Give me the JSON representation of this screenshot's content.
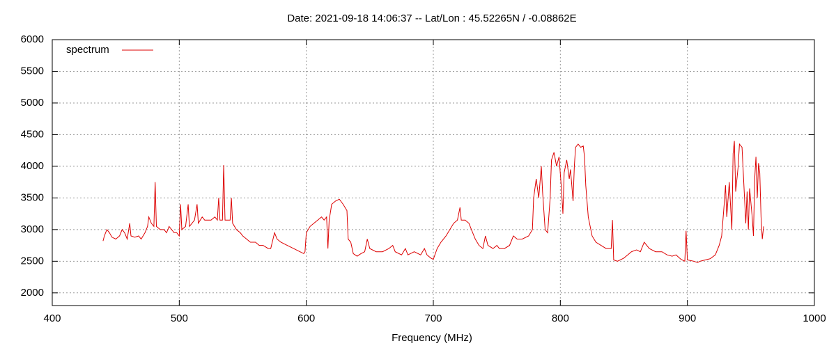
{
  "chart_data": {
    "type": "line",
    "title": "Date: 2021-09-18 14:06:37  --  Lat/Lon : 45.52265N / -0.08862E",
    "x_label": "Frequency (MHz)",
    "x": [
      440,
      441,
      443,
      445,
      447,
      450,
      453,
      455,
      457,
      459,
      461,
      462,
      465,
      468,
      470,
      473,
      475,
      476,
      478,
      480,
      481,
      482,
      485,
      488,
      490,
      492,
      494,
      496,
      498,
      500,
      501,
      502,
      505,
      507,
      508,
      510,
      512,
      514,
      515,
      518,
      520,
      522,
      525,
      528,
      530,
      531,
      532,
      534,
      535,
      536,
      538,
      540,
      541,
      542,
      545,
      548,
      550,
      553,
      556,
      560,
      563,
      566,
      570,
      572,
      575,
      577,
      580,
      585,
      590,
      595,
      598,
      599,
      600,
      603,
      606,
      609,
      612,
      614,
      616,
      617,
      618,
      620,
      623,
      626,
      629,
      632,
      633,
      635,
      637,
      640,
      643,
      646,
      648,
      650,
      655,
      660,
      665,
      668,
      670,
      675,
      678,
      680,
      685,
      690,
      693,
      695,
      698,
      700,
      703,
      706,
      710,
      713,
      716,
      719,
      721,
      722,
      725,
      728,
      730,
      733,
      736,
      739,
      741,
      743,
      747,
      750,
      752,
      756,
      760,
      763,
      766,
      770,
      775,
      778,
      779,
      781,
      783,
      785,
      786,
      788,
      790,
      792,
      793,
      795,
      797,
      799,
      801,
      802,
      803,
      805,
      807,
      808,
      810,
      811,
      812,
      814,
      816,
      818,
      819,
      820,
      822,
      825,
      828,
      832,
      836,
      840,
      841,
      842,
      845,
      850,
      853,
      856,
      860,
      863,
      866,
      870,
      875,
      880,
      884,
      888,
      891,
      895,
      898,
      899,
      900,
      905,
      908,
      910,
      914,
      918,
      922,
      925,
      927,
      929,
      930,
      931,
      933,
      935,
      936,
      937,
      938,
      940,
      941,
      943,
      944,
      946,
      947,
      948,
      949,
      951,
      952,
      953,
      954,
      955,
      956,
      957,
      958,
      959,
      960
    ],
    "series": [
      {
        "name": "spectrum",
        "color": "#dd0000",
        "values": [
          2820,
          2900,
          3000,
          2950,
          2880,
          2850,
          2900,
          3000,
          2950,
          2850,
          3100,
          2900,
          2880,
          2900,
          2850,
          2950,
          3050,
          3200,
          3100,
          3050,
          3750,
          3050,
          3000,
          3000,
          2950,
          3050,
          3000,
          2950,
          2950,
          2900,
          3400,
          3000,
          3050,
          3400,
          3050,
          3100,
          3150,
          3400,
          3100,
          3200,
          3150,
          3150,
          3150,
          3200,
          3150,
          3500,
          3150,
          3150,
          4020,
          3150,
          3150,
          3150,
          3500,
          3100,
          3000,
          2950,
          2900,
          2850,
          2800,
          2800,
          2750,
          2750,
          2700,
          2700,
          2950,
          2850,
          2800,
          2750,
          2700,
          2650,
          2620,
          2650,
          2950,
          3050,
          3100,
          3150,
          3200,
          3150,
          3200,
          2700,
          3150,
          3400,
          3450,
          3480,
          3400,
          3300,
          2850,
          2800,
          2620,
          2580,
          2620,
          2650,
          2850,
          2700,
          2650,
          2650,
          2700,
          2750,
          2650,
          2600,
          2700,
          2600,
          2650,
          2600,
          2700,
          2600,
          2550,
          2530,
          2700,
          2800,
          2900,
          3000,
          3100,
          3150,
          3350,
          3150,
          3150,
          3100,
          3000,
          2850,
          2750,
          2700,
          2900,
          2750,
          2700,
          2750,
          2700,
          2700,
          2750,
          2900,
          2850,
          2850,
          2900,
          3000,
          3500,
          3800,
          3500,
          4000,
          3600,
          3000,
          2950,
          3500,
          4100,
          4220,
          4000,
          4150,
          3600,
          3250,
          3900,
          4100,
          3800,
          3950,
          3450,
          4000,
          4300,
          4350,
          4300,
          4320,
          4150,
          3700,
          3200,
          2900,
          2800,
          2750,
          2700,
          2700,
          3150,
          2520,
          2500,
          2550,
          2600,
          2650,
          2680,
          2650,
          2800,
          2700,
          2650,
          2650,
          2600,
          2580,
          2600,
          2530,
          2500,
          2980,
          2520,
          2500,
          2480,
          2500,
          2520,
          2540,
          2600,
          2750,
          2900,
          3400,
          3700,
          3200,
          3750,
          3000,
          4200,
          4400,
          3600,
          4000,
          4350,
          4300,
          3900,
          3100,
          3600,
          3000,
          3650,
          3200,
          2900,
          3800,
          4150,
          3500,
          4050,
          3900,
          3200,
          2850,
          3050
        ]
      }
    ],
    "xlim": [
      400,
      1000
    ],
    "xticks": [
      400,
      500,
      600,
      700,
      800,
      900,
      1000
    ],
    "ylim": [
      1800,
      6000
    ],
    "yticks": [
      2000,
      2500,
      3000,
      3500,
      4000,
      4500,
      5000,
      5500,
      6000
    ],
    "grid": true,
    "legend": "top-left"
  }
}
